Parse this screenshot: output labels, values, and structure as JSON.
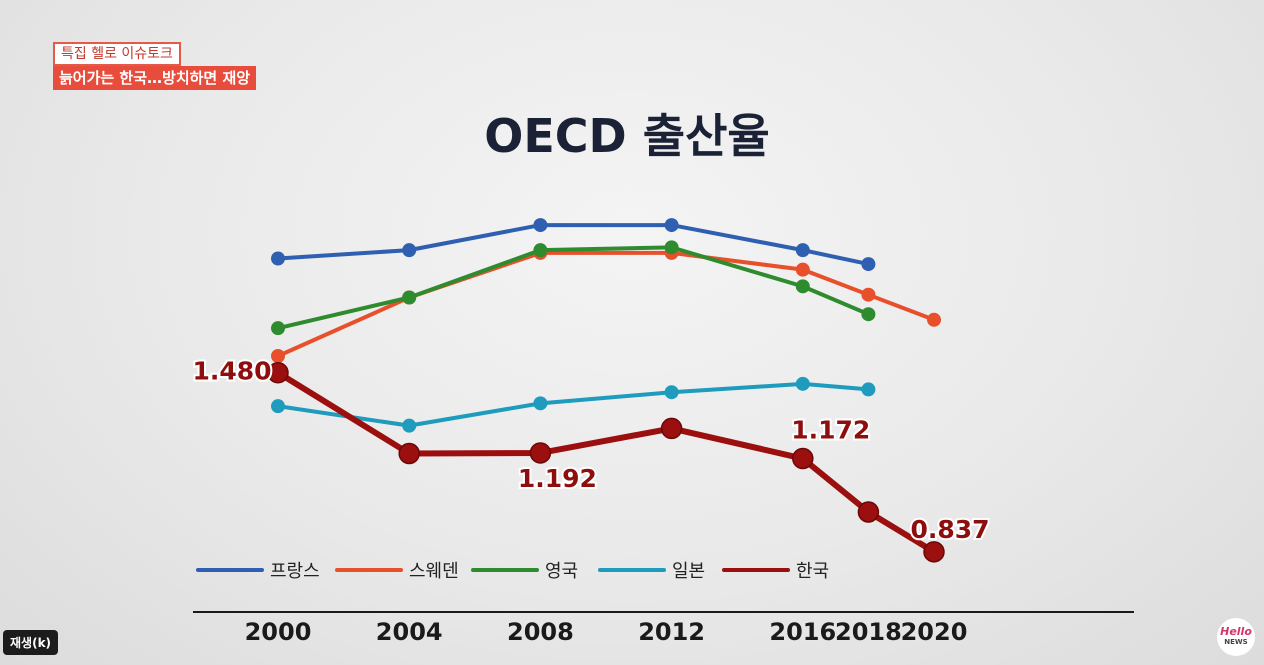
{
  "caption": {
    "top_label": "특집 헬로 이슈토크",
    "headline": "늙어가는 한국…방치하면 재앙"
  },
  "player": {
    "play_badge": "재생(k)"
  },
  "logo": {
    "line1": "Hello",
    "line2": "NEWS"
  },
  "chart_data": {
    "type": "line",
    "title": "OECD 출산율",
    "xlabel": "",
    "ylabel": "",
    "x": [
      2000,
      2004,
      2008,
      2012,
      2016,
      2018,
      2020
    ],
    "x_tick_labels": [
      "2000",
      "2004",
      "2008",
      "2012",
      "2016",
      "2018",
      "2020"
    ],
    "ylim": [
      0.7,
      2.1
    ],
    "grid": false,
    "legend_position": "bottom",
    "series": [
      {
        "name": "프랑스",
        "color": "#2f5fb0",
        "values": [
          1.89,
          1.92,
          2.01,
          2.01,
          1.92,
          1.87,
          null
        ]
      },
      {
        "name": "스웨덴",
        "color": "#e8502c",
        "values": [
          1.54,
          1.75,
          1.91,
          1.91,
          1.85,
          1.76,
          1.67
        ]
      },
      {
        "name": "영국",
        "color": "#2e8b2e",
        "values": [
          1.64,
          1.75,
          1.92,
          1.93,
          1.79,
          1.69,
          null
        ]
      },
      {
        "name": "일본",
        "color": "#1e9bbd",
        "values": [
          1.36,
          1.29,
          1.37,
          1.41,
          1.44,
          1.42,
          null
        ]
      },
      {
        "name": "한국",
        "color": "#9b0f0f",
        "values": [
          1.48,
          1.19,
          1.192,
          1.28,
          1.172,
          0.98,
          0.837
        ]
      }
    ],
    "data_labels": [
      {
        "series": "한국",
        "x": 2000,
        "text": "1.480"
      },
      {
        "series": "한국",
        "x": 2008,
        "text": "1.192"
      },
      {
        "series": "한국",
        "x": 2016,
        "text": "1.172"
      },
      {
        "series": "한국",
        "x": 2020,
        "text": "0.837"
      }
    ]
  }
}
